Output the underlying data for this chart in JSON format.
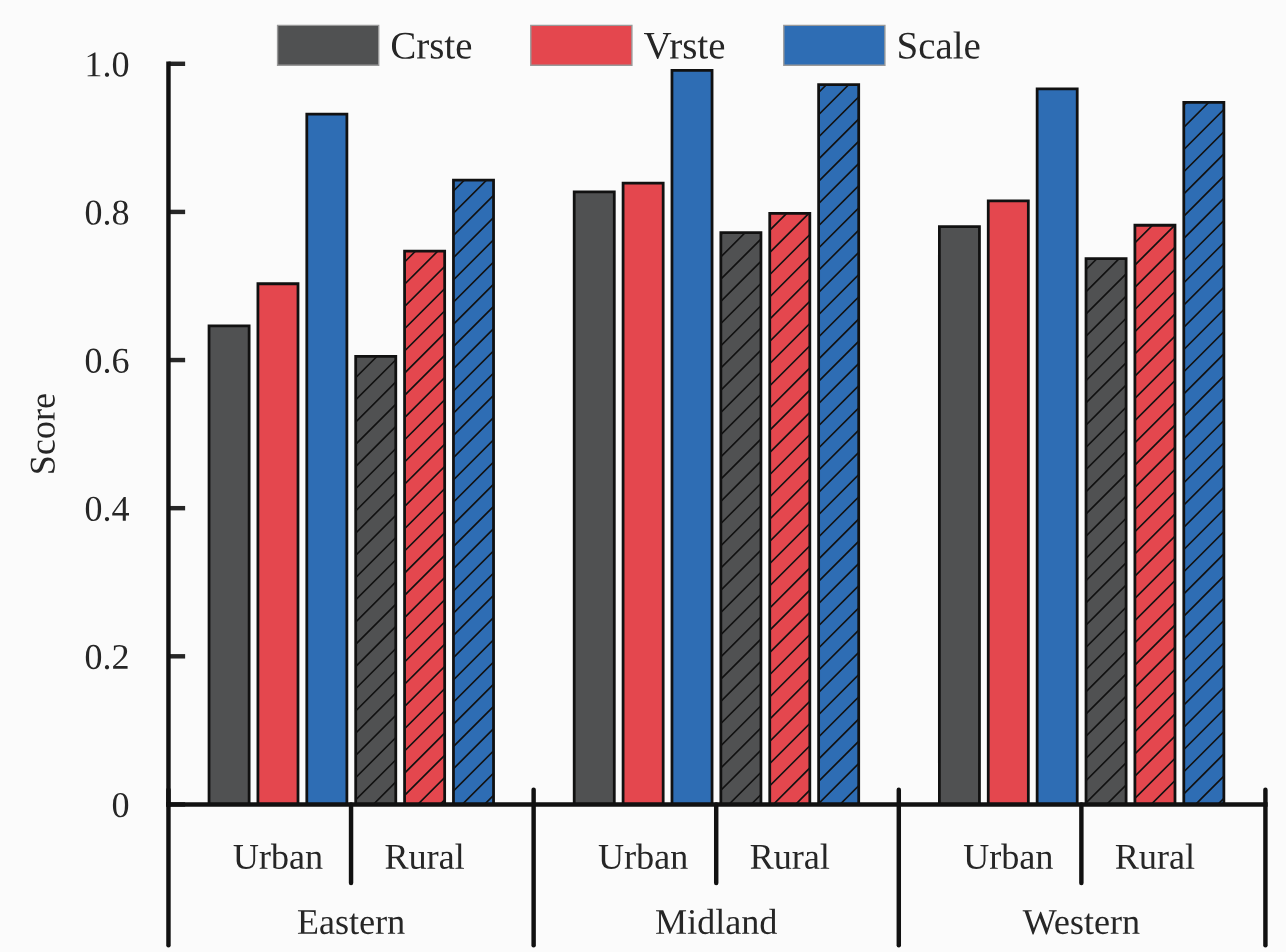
{
  "chart_data": {
    "type": "bar",
    "ylabel": "Score",
    "categories": [
      "Urban",
      "Rural",
      "Urban",
      "Rural",
      "Urban",
      "Rural"
    ],
    "annotations": [
      "Eastern",
      "Midland",
      "Western"
    ],
    "series": [
      {
        "name": "Crste",
        "color": "#505152",
        "values": [
          0.646,
          0.605,
          0.827,
          0.772,
          0.78,
          0.737
        ]
      },
      {
        "name": "Vrste",
        "color": "#e4474e",
        "values": [
          0.703,
          0.747,
          0.839,
          0.798,
          0.815,
          0.782
        ]
      },
      {
        "name": "Scale",
        "color": "#2e6db4",
        "values": [
          0.932,
          0.843,
          0.991,
          0.972,
          0.966,
          0.948
        ]
      }
    ],
    "ylim": [
      0,
      1.0
    ],
    "yticks": [
      0,
      0.2,
      0.4,
      0.6,
      0.8,
      {
        "value": 1.0,
        "label": "1.0"
      }
    ],
    "legend": "top",
    "grid": false
  }
}
